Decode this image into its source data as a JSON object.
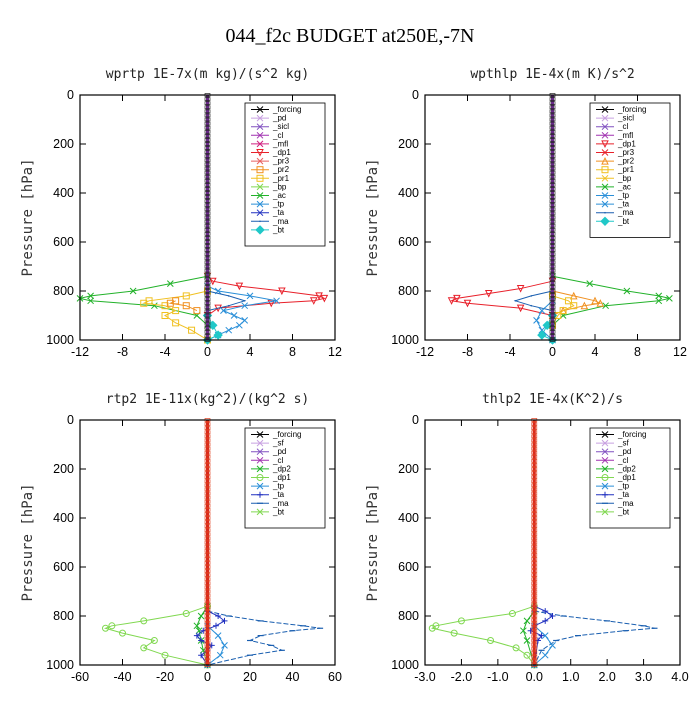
{
  "figure_title": "044_f2c  BUDGET at250E,-7N",
  "chart_data": [
    {
      "type": "line",
      "title": "wprtp  1E-7x(m kg)/(s^2 kg)",
      "ylabel": "Pressure [hPa]",
      "xlim": [
        -12,
        12
      ],
      "xticks": [
        -12,
        -8,
        -4,
        0,
        4,
        8,
        12
      ],
      "ylim": [
        1000,
        0
      ],
      "yticks": [
        0,
        200,
        400,
        600,
        800,
        1000
      ],
      "legend_position": "top-right",
      "legend": [
        "_forcing",
        "_pd",
        "_sicl",
        "_cl",
        "_mfl",
        "_dp1",
        "_pr3",
        "_pr2",
        "_pr1",
        "_bp",
        "_ac",
        "_tp",
        "_ta",
        "_ma",
        "_bt"
      ],
      "series": [
        {
          "name": "_dp1",
          "color": "#e8202a",
          "marker": "v",
          "y": [
            740,
            760,
            780,
            800,
            820,
            830,
            840,
            850,
            870,
            900
          ],
          "x": [
            0,
            0.5,
            3,
            7,
            10.5,
            11,
            10,
            6,
            1,
            0
          ]
        },
        {
          "name": "_tp",
          "color": "#2a8fd8",
          "marker": "x",
          "y": [
            780,
            800,
            820,
            840,
            860,
            880,
            900,
            920,
            940,
            960,
            980,
            1000
          ],
          "x": [
            0,
            1,
            4,
            6.5,
            3.5,
            1.5,
            2.5,
            3.5,
            3,
            2,
            1,
            0
          ]
        },
        {
          "name": "_ac",
          "color": "#22b22a",
          "marker": "x",
          "y": [
            740,
            770,
            800,
            820,
            830,
            840,
            860,
            900,
            940,
            1000
          ],
          "x": [
            0,
            -3.5,
            -7,
            -11,
            -12,
            -11,
            -5,
            -1,
            0,
            0
          ]
        },
        {
          "name": "_pr1",
          "color": "#f0c020",
          "marker": "square",
          "y": [
            800,
            820,
            840,
            850,
            860,
            880,
            900,
            930,
            960,
            1000
          ],
          "x": [
            0,
            -2,
            -5.5,
            -6,
            -4,
            -3,
            -4,
            -3,
            -1.5,
            0
          ]
        },
        {
          "name": "_pr2",
          "color": "#f09020",
          "marker": "square",
          "y": [
            840,
            850,
            860,
            880
          ],
          "x": [
            -3,
            -3.5,
            -2,
            -1
          ]
        },
        {
          "name": "_ma",
          "color": "#1a5fb0",
          "marker": "none",
          "y": [
            800,
            820,
            840,
            860,
            880
          ],
          "x": [
            0,
            2,
            3.5,
            2,
            0
          ]
        },
        {
          "name": "_bt",
          "color": "#20c8c8",
          "marker": "diamond",
          "y": [
            900,
            940,
            980,
            1000
          ],
          "x": [
            0,
            0.5,
            1,
            0
          ]
        }
      ]
    },
    {
      "type": "line",
      "title": "wpthlp  1E-4x(m K)/s^2",
      "ylabel": "Pressure [hPa]",
      "xlim": [
        -12,
        12
      ],
      "xticks": [
        -12,
        -8,
        -4,
        0,
        4,
        8,
        12
      ],
      "ylim": [
        1000,
        0
      ],
      "yticks": [
        0,
        200,
        400,
        600,
        800,
        1000
      ],
      "legend_position": "top-right",
      "legend": [
        "_forcing",
        "_sicl",
        "_cl",
        "_mfl",
        "_dp1",
        "_pr3",
        "_pr2",
        "_pr1",
        "_bp",
        "_ac",
        "_tp",
        "_ta",
        "_ma",
        "_bt"
      ],
      "series": [
        {
          "name": "_ac",
          "color": "#22b22a",
          "marker": "x",
          "y": [
            740,
            770,
            800,
            820,
            830,
            840,
            860,
            900,
            940,
            1000
          ],
          "x": [
            0,
            3.5,
            7,
            10,
            11,
            10,
            5,
            1,
            0,
            0
          ]
        },
        {
          "name": "_dp1",
          "color": "#e8202a",
          "marker": "v",
          "y": [
            760,
            790,
            810,
            830,
            840,
            850,
            870,
            900
          ],
          "x": [
            0,
            -3,
            -6,
            -9,
            -9.5,
            -8,
            -3,
            0
          ]
        },
        {
          "name": "_pr2",
          "color": "#f09020",
          "marker": "triangle",
          "y": [
            800,
            820,
            840,
            850,
            860,
            880,
            900
          ],
          "x": [
            0,
            2,
            4,
            4.5,
            3,
            1,
            0
          ]
        },
        {
          "name": "_pr1",
          "color": "#f0c020",
          "marker": "square",
          "y": [
            820,
            840,
            860,
            880,
            900,
            940
          ],
          "x": [
            0,
            1.5,
            2,
            1,
            0.5,
            0
          ]
        },
        {
          "name": "_ma",
          "color": "#1a5fb0",
          "marker": "none",
          "y": [
            800,
            820,
            840,
            860,
            880
          ],
          "x": [
            0,
            -2,
            -3.5,
            -2,
            0
          ]
        },
        {
          "name": "_tp",
          "color": "#2a8fd8",
          "marker": "x",
          "y": [
            840,
            880,
            920,
            960,
            1000
          ],
          "x": [
            0,
            -1,
            -1.5,
            -1,
            0
          ]
        },
        {
          "name": "_bt",
          "color": "#20c8c8",
          "marker": "diamond",
          "y": [
            900,
            940,
            980,
            1000
          ],
          "x": [
            0,
            -0.5,
            -1,
            0
          ]
        }
      ]
    },
    {
      "type": "line",
      "title": "rtp2  1E-11x(kg^2)/(kg^2 s)",
      "ylabel": "Pressure [hPa]",
      "xlim": [
        -60,
        60
      ],
      "xticks": [
        -60,
        -40,
        -20,
        0,
        20,
        40,
        60
      ],
      "ylim": [
        1000,
        0
      ],
      "yticks": [
        0,
        200,
        400,
        600,
        800,
        1000
      ],
      "legend_position": "top-right",
      "legend": [
        "_forcing",
        "_sf",
        "_pd",
        "_cl",
        "_dp2",
        "_dp1",
        "_tp",
        "_ta",
        "_ma",
        "_bt"
      ],
      "series": [
        {
          "name": "_dp1",
          "color": "#80d850",
          "marker": "circle",
          "y": [
            760,
            790,
            820,
            840,
            850,
            870,
            900,
            930,
            960,
            1000
          ],
          "x": [
            0,
            -10,
            -30,
            -45,
            -48,
            -40,
            -25,
            -30,
            -20,
            0
          ]
        },
        {
          "name": "_dp2",
          "color": "#22b22a",
          "marker": "x",
          "y": [
            760,
            800,
            840,
            860,
            900,
            940,
            1000
          ],
          "x": [
            0,
            -3,
            -5,
            -4,
            -3,
            -2,
            0
          ]
        },
        {
          "name": "_ma",
          "color": "#1a5fb0",
          "marker": "dash",
          "y": [
            780,
            800,
            820,
            840,
            850,
            860,
            880,
            900,
            920,
            940,
            960,
            1000
          ],
          "x": [
            0,
            10,
            25,
            45,
            53,
            40,
            25,
            20,
            30,
            35,
            20,
            0
          ]
        },
        {
          "name": "_ta",
          "color": "#2030c0",
          "marker": "plus",
          "y": [
            780,
            800,
            820,
            840,
            860,
            880,
            900,
            920,
            940,
            960,
            1000
          ],
          "x": [
            0,
            5,
            8,
            4,
            -2,
            -5,
            -3,
            2,
            0,
            -3,
            0
          ]
        },
        {
          "name": "_tp",
          "color": "#2a8fd8",
          "marker": "x",
          "y": [
            840,
            880,
            920,
            960,
            1000
          ],
          "x": [
            0,
            5,
            8,
            6,
            0
          ]
        }
      ]
    },
    {
      "type": "line",
      "title": "thlp2  1E-4x(K^2)/s",
      "ylabel": "Pressure [hPa]",
      "xlim": [
        -3,
        4
      ],
      "xticks": [
        -3,
        -2,
        -1,
        0,
        1,
        2,
        3,
        4
      ],
      "xtick_labels": [
        "-3.0",
        "-2.0",
        "-1.0",
        "0.0",
        "1.0",
        "2.0",
        "3.0",
        "4.0"
      ],
      "ylim": [
        1000,
        0
      ],
      "yticks": [
        0,
        200,
        400,
        600,
        800,
        1000
      ],
      "legend_position": "top-right",
      "legend": [
        "_forcing",
        "_sf",
        "_pd",
        "_cl",
        "_dp2",
        "_dp1",
        "_tp",
        "_ta",
        "_ma",
        "_bt"
      ],
      "series": [
        {
          "name": "_dp1",
          "color": "#80d850",
          "marker": "circle",
          "y": [
            760,
            790,
            820,
            840,
            850,
            870,
            900,
            930,
            960,
            1000
          ],
          "x": [
            0,
            -0.6,
            -2,
            -2.7,
            -2.8,
            -2.2,
            -1.2,
            -0.5,
            -0.2,
            0
          ]
        },
        {
          "name": "_dp2",
          "color": "#22b22a",
          "marker": "x",
          "y": [
            780,
            820,
            860,
            900,
            1000
          ],
          "x": [
            0,
            -0.2,
            -0.3,
            -0.2,
            0
          ]
        },
        {
          "name": "_ma",
          "color": "#1a5fb0",
          "marker": "dash",
          "y": [
            780,
            800,
            820,
            840,
            850,
            860,
            880,
            900,
            940,
            1000
          ],
          "x": [
            0,
            0.8,
            2,
            3,
            3.3,
            2.5,
            1.2,
            0.6,
            0.2,
            0
          ]
        },
        {
          "name": "_ta",
          "color": "#2030c0",
          "marker": "plus",
          "y": [
            760,
            780,
            800,
            820,
            840,
            860,
            880,
            900,
            1000
          ],
          "x": [
            0,
            0.3,
            0.5,
            0.3,
            0,
            -0.1,
            0.2,
            0.1,
            0
          ]
        },
        {
          "name": "_tp",
          "color": "#2a8fd8",
          "marker": "x",
          "y": [
            840,
            880,
            920,
            960,
            1000
          ],
          "x": [
            0,
            0.3,
            0.5,
            0.3,
            0
          ]
        }
      ]
    }
  ]
}
